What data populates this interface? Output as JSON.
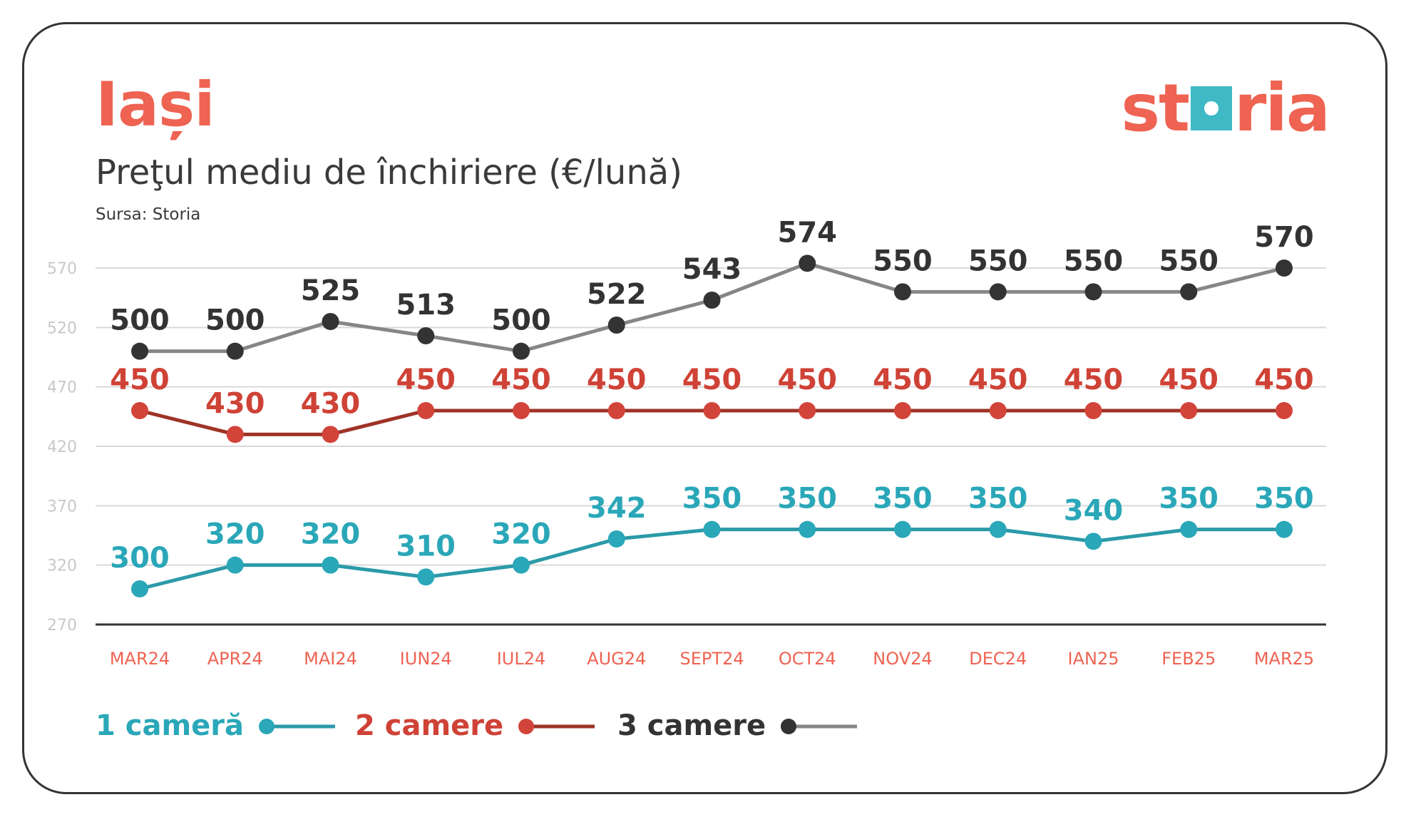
{
  "header": {
    "city": "Iași",
    "subtitle": "Preţul mediu de închiriere (€/lună)",
    "source": "Sursa: Storia",
    "logo_text_left": "st",
    "logo_text_right": "ria"
  },
  "colors": {
    "accent": "#ee6352",
    "one_room": "#2b9aa8",
    "one_room_label": "#2aa7b8",
    "two_rooms_line": "#9e3326",
    "two_rooms_marker": "#d2443a",
    "two_rooms_label": "#cf4236",
    "three_rooms_line": "#868686",
    "three_rooms_marker": "#333333",
    "three_rooms_label": "#333333",
    "grid": "#d9d9d9",
    "axis": "#333333",
    "tick": "#c8c8c8",
    "x_tick": "#ee6352"
  },
  "legend": {
    "one_room": "1 cameră",
    "two_rooms": "2 camere",
    "three_rooms": "3 camere"
  },
  "chart_data": {
    "type": "line",
    "title": "Preţul mediu de închiriere (€/lună)",
    "categories": [
      "MAR24",
      "APR24",
      "MAI24",
      "IUN24",
      "IUL24",
      "AUG24",
      "SEPT24",
      "OCT24",
      "NOV24",
      "DEC24",
      "IAN25",
      "FEB25",
      "MAR25"
    ],
    "yticks": [
      270,
      320,
      370,
      420,
      470,
      520,
      570
    ],
    "ylim": [
      270,
      570
    ],
    "grid": true,
    "legend_position": "bottom",
    "series": [
      {
        "name": "1 cameră",
        "values": [
          300,
          320,
          320,
          310,
          320,
          342,
          350,
          350,
          350,
          350,
          340,
          350,
          350
        ]
      },
      {
        "name": "2 camere",
        "values": [
          450,
          430,
          430,
          450,
          450,
          450,
          450,
          450,
          450,
          450,
          450,
          450,
          450
        ]
      },
      {
        "name": "3 camere",
        "values": [
          500,
          500,
          525,
          513,
          500,
          522,
          543,
          574,
          550,
          550,
          550,
          550,
          570
        ]
      }
    ]
  }
}
